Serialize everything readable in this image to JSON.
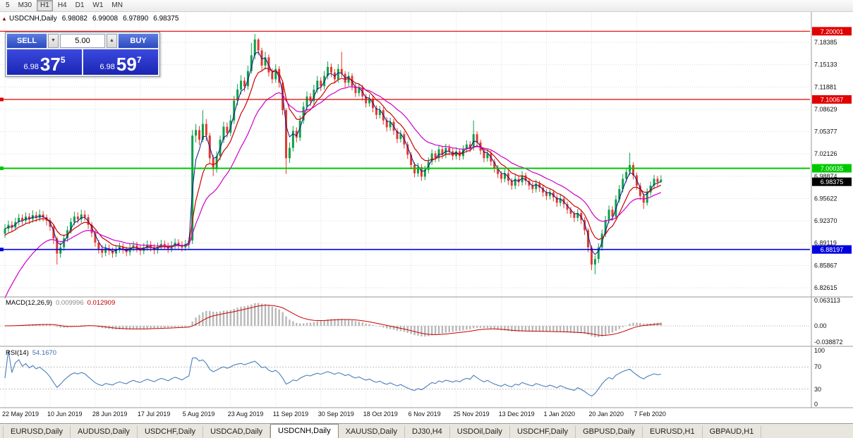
{
  "icons": {
    "chart_marker": "▲",
    "spin_up": "▲",
    "spin_down": "▼"
  },
  "toolbar": {
    "timeframes": [
      "5",
      "M30",
      "H1",
      "H4",
      "D1",
      "W1",
      "MN"
    ],
    "selected": "H1"
  },
  "chart_header": {
    "symbol": "USDCNH,Daily",
    "open": "6.98082",
    "high": "6.99008",
    "low": "6.97890",
    "close": "6.98375"
  },
  "trade_panel": {
    "sell_label": "SELL",
    "buy_label": "BUY",
    "volume": "5.00",
    "sell_price": {
      "small": "6.98",
      "big": "37",
      "sup": "5"
    },
    "buy_price": {
      "small": "6.98",
      "big": "59",
      "sup": "7"
    }
  },
  "chart_data": {
    "type": "candlestick",
    "symbol": "USDCNH",
    "timeframe": "Daily",
    "ylim": [
      6.8128,
      7.2281
    ],
    "y_ticks": [
      7.18385,
      7.15133,
      7.11881,
      7.08629,
      7.05377,
      7.02126,
      6.98874,
      6.95622,
      6.9237,
      6.89119,
      6.85867,
      6.82615
    ],
    "date_labels": [
      "22 May 2019",
      "10 Jun 2019",
      "28 Jun 2019",
      "17 Jul 2019",
      "5 Aug 2019",
      "23 Aug 2019",
      "11 Sep 2019",
      "30 Sep 2019",
      "18 Oct 2019",
      "6 Nov 2019",
      "25 Nov 2019",
      "13 Dec 2019",
      "1 Jan 2020",
      "20 Jan 2020",
      "7 Feb 2020"
    ],
    "bars_per_label": 13,
    "colors": {
      "up": "#0ca04a",
      "down": "#e23a2e",
      "ma_fast": "#14148c",
      "ma_mid": "#cc0000",
      "ma_slow": "#cc00cc",
      "grid": "#dcdcdc"
    },
    "levels": [
      {
        "label": "7.20001",
        "price": 7.20001,
        "color": "#e00000",
        "width": 1.2,
        "handle": false
      },
      {
        "label": "7.10067",
        "price": 7.10067,
        "color": "#e00000",
        "width": 1.2,
        "handle": true
      },
      {
        "label": "7.00035",
        "price": 7.00035,
        "color": "#00c800",
        "width": 2,
        "handle": true
      },
      {
        "label": "6.88197",
        "price": 6.88197,
        "color": "#0000e0",
        "width": 1.6,
        "handle": true
      }
    ],
    "current_price": {
      "label": "6.98375",
      "price": 6.98375,
      "badge_color": "#000000"
    },
    "ohlc": [
      [
        6.905,
        6.919,
        6.899,
        6.912
      ],
      [
        6.912,
        6.924,
        6.907,
        6.918
      ],
      [
        6.918,
        6.923,
        6.908,
        6.914
      ],
      [
        6.914,
        6.928,
        6.91,
        6.922
      ],
      [
        6.922,
        6.934,
        6.917,
        6.928
      ],
      [
        6.928,
        6.933,
        6.918,
        6.924
      ],
      [
        6.924,
        6.936,
        6.92,
        6.93
      ],
      [
        6.93,
        6.935,
        6.919,
        6.926
      ],
      [
        6.926,
        6.939,
        6.921,
        6.932
      ],
      [
        6.932,
        6.937,
        6.922,
        6.928
      ],
      [
        6.928,
        6.94,
        6.923,
        6.933
      ],
      [
        6.933,
        6.938,
        6.923,
        6.929
      ],
      [
        6.929,
        6.933,
        6.917,
        6.924
      ],
      [
        6.924,
        6.928,
        6.909,
        6.915
      ],
      [
        6.915,
        6.919,
        6.89,
        6.898
      ],
      [
        6.898,
        6.901,
        6.86,
        6.876
      ],
      [
        6.876,
        6.892,
        6.87,
        6.885
      ],
      [
        6.885,
        6.904,
        6.88,
        6.898
      ],
      [
        6.898,
        6.916,
        6.893,
        6.91
      ],
      [
        6.91,
        6.928,
        6.905,
        6.922
      ],
      [
        6.922,
        6.937,
        6.917,
        6.93
      ],
      [
        6.93,
        6.936,
        6.92,
        6.926
      ],
      [
        6.926,
        6.94,
        6.921,
        6.933
      ],
      [
        6.933,
        6.939,
        6.924,
        6.929
      ],
      [
        6.929,
        6.933,
        6.912,
        6.918
      ],
      [
        6.918,
        6.922,
        6.9,
        6.906
      ],
      [
        6.906,
        6.91,
        6.886,
        6.892
      ],
      [
        6.892,
        6.896,
        6.876,
        6.883
      ],
      [
        6.883,
        6.888,
        6.87,
        6.877
      ],
      [
        6.877,
        6.89,
        6.872,
        6.884
      ],
      [
        6.884,
        6.889,
        6.874,
        6.88
      ],
      [
        6.88,
        6.885,
        6.87,
        6.876
      ],
      [
        6.876,
        6.888,
        6.871,
        6.882
      ],
      [
        6.882,
        6.892,
        6.877,
        6.886
      ],
      [
        6.886,
        6.891,
        6.876,
        6.881
      ],
      [
        6.881,
        6.886,
        6.872,
        6.878
      ],
      [
        6.878,
        6.89,
        6.873,
        6.884
      ],
      [
        6.884,
        6.894,
        6.879,
        6.888
      ],
      [
        6.888,
        6.893,
        6.878,
        6.883
      ],
      [
        6.883,
        6.888,
        6.874,
        6.88
      ],
      [
        6.88,
        6.891,
        6.875,
        6.885
      ],
      [
        6.885,
        6.895,
        6.88,
        6.889
      ],
      [
        6.889,
        6.894,
        6.879,
        6.885
      ],
      [
        6.885,
        6.89,
        6.875,
        6.881
      ],
      [
        6.881,
        6.892,
        6.876,
        6.886
      ],
      [
        6.886,
        6.896,
        6.881,
        6.89
      ],
      [
        6.89,
        6.895,
        6.881,
        6.887
      ],
      [
        6.887,
        6.892,
        6.877,
        6.883
      ],
      [
        6.883,
        6.894,
        6.878,
        6.888
      ],
      [
        6.888,
        6.898,
        6.883,
        6.892
      ],
      [
        6.892,
        6.897,
        6.883,
        6.889
      ],
      [
        6.889,
        6.894,
        6.879,
        6.885
      ],
      [
        6.885,
        6.896,
        6.88,
        6.89
      ],
      [
        6.89,
        6.9,
        6.883,
        6.895
      ],
      [
        6.895,
        7.056,
        6.89,
        7.048
      ],
      [
        7.048,
        7.065,
        7.038,
        7.056
      ],
      [
        7.056,
        7.062,
        7.034,
        7.042
      ],
      [
        7.042,
        7.085,
        7.038,
        7.065
      ],
      [
        7.065,
        7.072,
        7.04,
        7.048
      ],
      [
        7.048,
        7.052,
        7.008,
        7.015
      ],
      [
        7.015,
        7.02,
        6.989,
        6.999
      ],
      [
        6.999,
        7.025,
        6.994,
        7.018
      ],
      [
        7.018,
        7.048,
        7.012,
        7.042
      ],
      [
        7.042,
        7.068,
        7.037,
        7.061
      ],
      [
        7.061,
        7.067,
        7.045,
        7.052
      ],
      [
        7.052,
        7.078,
        7.047,
        7.07
      ],
      [
        7.07,
        7.106,
        7.065,
        7.099
      ],
      [
        7.099,
        7.123,
        7.092,
        7.115
      ],
      [
        7.115,
        7.136,
        7.108,
        7.128
      ],
      [
        7.128,
        7.133,
        7.112,
        7.12
      ],
      [
        7.12,
        7.15,
        7.115,
        7.142
      ],
      [
        7.142,
        7.183,
        7.138,
        7.165
      ],
      [
        7.165,
        7.196,
        7.159,
        7.188
      ],
      [
        7.188,
        7.19,
        7.165,
        7.172
      ],
      [
        7.172,
        7.176,
        7.143,
        7.15
      ],
      [
        7.15,
        7.17,
        7.144,
        7.162
      ],
      [
        7.162,
        7.166,
        7.134,
        7.14
      ],
      [
        7.14,
        7.146,
        7.124,
        7.13
      ],
      [
        7.13,
        7.152,
        7.125,
        7.145
      ],
      [
        7.145,
        7.149,
        7.118,
        7.125
      ],
      [
        7.125,
        7.128,
        7.078,
        7.085
      ],
      [
        7.085,
        7.088,
        6.992,
        7.015
      ],
      [
        7.015,
        7.038,
        7.008,
        7.03
      ],
      [
        7.03,
        7.062,
        7.025,
        7.055
      ],
      [
        7.055,
        7.06,
        7.038,
        7.045
      ],
      [
        7.045,
        7.077,
        7.04,
        7.07
      ],
      [
        7.07,
        7.097,
        7.065,
        7.09
      ],
      [
        7.09,
        7.112,
        7.084,
        7.105
      ],
      [
        7.105,
        7.11,
        7.091,
        7.098
      ],
      [
        7.098,
        7.122,
        7.093,
        7.115
      ],
      [
        7.115,
        7.135,
        7.11,
        7.128
      ],
      [
        7.128,
        7.133,
        7.113,
        7.12
      ],
      [
        7.12,
        7.142,
        7.115,
        7.135
      ],
      [
        7.135,
        7.156,
        7.13,
        7.148
      ],
      [
        7.148,
        7.153,
        7.133,
        7.14
      ],
      [
        7.14,
        7.145,
        7.124,
        7.13
      ],
      [
        7.13,
        7.152,
        7.125,
        7.145
      ],
      [
        7.145,
        7.17,
        7.133,
        7.138
      ],
      [
        7.138,
        7.142,
        7.118,
        7.125
      ],
      [
        7.125,
        7.141,
        7.12,
        7.135
      ],
      [
        7.135,
        7.139,
        7.114,
        7.12
      ],
      [
        7.12,
        7.125,
        7.104,
        7.11
      ],
      [
        7.11,
        7.124,
        7.105,
        7.118
      ],
      [
        7.118,
        7.122,
        7.099,
        7.105
      ],
      [
        7.105,
        7.109,
        7.089,
        7.095
      ],
      [
        7.095,
        7.108,
        7.09,
        7.102
      ],
      [
        7.102,
        7.106,
        7.082,
        7.088
      ],
      [
        7.088,
        7.092,
        7.072,
        7.078
      ],
      [
        7.078,
        7.091,
        7.073,
        7.085
      ],
      [
        7.085,
        7.089,
        7.064,
        7.07
      ],
      [
        7.07,
        7.075,
        7.054,
        7.06
      ],
      [
        7.06,
        7.074,
        7.055,
        7.068
      ],
      [
        7.068,
        7.072,
        7.049,
        7.055
      ],
      [
        7.055,
        7.059,
        7.037,
        7.043
      ],
      [
        7.043,
        7.056,
        7.038,
        7.05
      ],
      [
        7.05,
        7.054,
        7.029,
        7.035
      ],
      [
        7.035,
        7.039,
        7.014,
        7.02
      ],
      [
        7.02,
        7.024,
        6.999,
        7.005
      ],
      [
        7.005,
        7.009,
        6.987,
        6.993
      ],
      [
        6.993,
        7.008,
        6.988,
        7.002
      ],
      [
        7.002,
        7.006,
        6.982,
        6.988
      ],
      [
        6.988,
        7.004,
        6.983,
        6.998
      ],
      [
        6.998,
        7.016,
        6.993,
        7.01
      ],
      [
        7.01,
        7.028,
        7.005,
        7.022
      ],
      [
        7.022,
        7.026,
        7.009,
        7.015
      ],
      [
        7.015,
        7.034,
        7.01,
        7.028
      ],
      [
        7.028,
        7.032,
        7.014,
        7.02
      ],
      [
        7.02,
        7.036,
        7.015,
        7.03
      ],
      [
        7.03,
        7.035,
        7.019,
        7.025
      ],
      [
        7.025,
        7.03,
        7.012,
        7.018
      ],
      [
        7.018,
        7.031,
        7.013,
        7.025
      ],
      [
        7.025,
        7.029,
        7.012,
        7.018
      ],
      [
        7.018,
        7.034,
        7.013,
        7.028
      ],
      [
        7.028,
        7.041,
        7.023,
        7.035
      ],
      [
        7.035,
        7.04,
        7.024,
        7.03
      ],
      [
        7.03,
        7.07,
        7.026,
        7.05
      ],
      [
        7.05,
        7.054,
        7.032,
        7.038
      ],
      [
        7.038,
        7.042,
        7.02,
        7.026
      ],
      [
        7.026,
        7.03,
        7.009,
        7.015
      ],
      [
        7.015,
        7.028,
        7.01,
        7.022
      ],
      [
        7.022,
        7.026,
        7.004,
        7.01
      ],
      [
        7.01,
        7.014,
        6.994,
        7.0
      ],
      [
        7.0,
        7.005,
        6.986,
        6.992
      ],
      [
        6.992,
        6.996,
        6.979,
        6.985
      ],
      [
        6.985,
        6.999,
        6.98,
        6.993
      ],
      [
        6.993,
        6.997,
        6.976,
        6.982
      ],
      [
        6.982,
        6.986,
        6.969,
        6.975
      ],
      [
        6.975,
        6.991,
        6.97,
        6.985
      ],
      [
        6.985,
        6.99,
        6.974,
        6.98
      ],
      [
        6.98,
        6.996,
        6.975,
        6.99
      ],
      [
        6.99,
        6.994,
        6.976,
        6.982
      ],
      [
        6.982,
        6.986,
        6.969,
        6.975
      ],
      [
        6.975,
        6.98,
        6.964,
        6.97
      ],
      [
        6.97,
        6.984,
        6.965,
        6.978
      ],
      [
        6.978,
        6.982,
        6.966,
        6.972
      ],
      [
        6.972,
        6.976,
        6.959,
        6.965
      ],
      [
        6.965,
        6.97,
        6.954,
        6.96
      ],
      [
        6.96,
        6.971,
        6.955,
        6.965
      ],
      [
        6.965,
        6.969,
        6.952,
        6.958
      ],
      [
        6.958,
        6.962,
        6.944,
        6.95
      ],
      [
        6.95,
        6.962,
        6.945,
        6.956
      ],
      [
        6.956,
        6.96,
        6.942,
        6.948
      ],
      [
        6.948,
        6.952,
        6.934,
        6.94
      ],
      [
        6.94,
        6.944,
        6.928,
        6.934
      ],
      [
        6.934,
        6.938,
        6.922,
        6.928
      ],
      [
        6.928,
        6.941,
        6.923,
        6.935
      ],
      [
        6.935,
        6.939,
        6.919,
        6.925
      ],
      [
        6.925,
        6.929,
        6.903,
        6.91
      ],
      [
        6.91,
        6.913,
        6.878,
        6.885
      ],
      [
        6.885,
        6.888,
        6.852,
        6.86
      ],
      [
        6.86,
        6.873,
        6.8458,
        6.868
      ],
      [
        6.868,
        6.891,
        6.862,
        6.885
      ],
      [
        6.885,
        6.911,
        6.88,
        6.905
      ],
      [
        6.905,
        6.931,
        6.9,
        6.925
      ],
      [
        6.925,
        6.946,
        6.92,
        6.94
      ],
      [
        6.94,
        6.945,
        6.924,
        6.93
      ],
      [
        6.93,
        6.961,
        6.926,
        6.955
      ],
      [
        6.955,
        6.976,
        6.95,
        6.97
      ],
      [
        6.97,
        6.992,
        6.965,
        6.985
      ],
      [
        6.985,
        7.001,
        6.98,
        6.995
      ],
      [
        6.995,
        7.023,
        6.99,
        7.005
      ],
      [
        7.005,
        7.009,
        6.984,
        6.99
      ],
      [
        6.99,
        6.994,
        6.969,
        6.975
      ],
      [
        6.975,
        6.979,
        6.954,
        6.96
      ],
      [
        6.96,
        6.964,
        6.941,
        6.95
      ],
      [
        6.95,
        6.971,
        6.946,
        6.965
      ],
      [
        6.965,
        6.981,
        6.96,
        6.975
      ],
      [
        6.975,
        6.9905,
        6.97,
        6.985
      ],
      [
        6.985,
        6.989,
        6.974,
        6.98
      ],
      [
        6.98082,
        6.99008,
        6.9789,
        6.98375
      ]
    ]
  },
  "macd": {
    "label": "MACD(12,26,9)",
    "value_main": "0.009996",
    "value_signal": "0.012909",
    "axis_labels": [
      "0.063113",
      "0.00",
      "-0.038872"
    ],
    "params": [
      12,
      26,
      9
    ],
    "histogram_color": "#b8b8b8",
    "signal_color": "#cc0000"
  },
  "rsi": {
    "label": "RSI(14)",
    "value": "54.1670",
    "axis_labels": [
      "100",
      "70",
      "30",
      "0"
    ],
    "period": 14,
    "levels": [
      70,
      30
    ],
    "line_color": "#4a7ebb"
  },
  "tabs": {
    "active_index": 4,
    "items": [
      "EURUSD,Daily",
      "AUDUSD,Daily",
      "USDCHF,Daily",
      "USDCAD,Daily",
      "USDCNH,Daily",
      "XAUUSD,Daily",
      "DJ30,H4",
      "USDOil,Daily",
      "USDCHF,Daily",
      "GBPUSD,Daily",
      "EURUSD,H1",
      "GBPAUD,H1"
    ]
  }
}
